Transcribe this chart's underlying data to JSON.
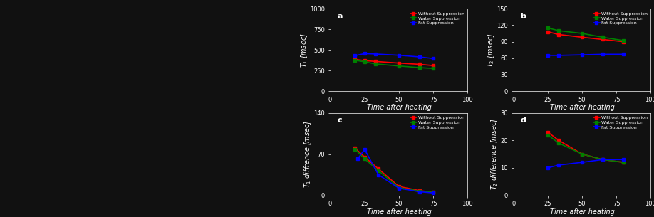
{
  "graph_a": {
    "label": "a",
    "ylabel": "$T_1$ [msec]",
    "xlabel": "Time after heating",
    "ylim": [
      0,
      1000
    ],
    "xlim": [
      0,
      100
    ],
    "yticks": [
      0,
      250,
      500,
      750,
      1000
    ],
    "xticks": [
      0,
      25,
      50,
      75,
      100
    ],
    "series": {
      "without": {
        "x": [
          18,
          25,
          33,
          50,
          65,
          75
        ],
        "y": [
          385,
          370,
          360,
          340,
          325,
          310
        ],
        "color": "red",
        "label": "Without Suppression"
      },
      "water": {
        "x": [
          18,
          25,
          33,
          50,
          65,
          75
        ],
        "y": [
          375,
          355,
          330,
          305,
          285,
          275
        ],
        "color": "green",
        "label": "Water Suppression"
      },
      "fat": {
        "x": [
          18,
          25,
          33,
          50,
          65,
          75
        ],
        "y": [
          430,
          455,
          450,
          435,
          415,
          395
        ],
        "color": "blue",
        "label": "Fat Suppression"
      }
    }
  },
  "graph_b": {
    "label": "b",
    "ylabel": "$T_2$ [msec]",
    "xlabel": "Time after heating",
    "ylim": [
      0,
      150
    ],
    "xlim": [
      0,
      100
    ],
    "yticks": [
      0,
      30,
      60,
      90,
      120,
      150
    ],
    "xticks": [
      0,
      25,
      50,
      75,
      100
    ],
    "series": {
      "without": {
        "x": [
          25,
          33,
          50,
          65,
          80
        ],
        "y": [
          108,
          103,
          98,
          94,
          90
        ],
        "color": "red",
        "label": "Without Suppression"
      },
      "water": {
        "x": [
          25,
          33,
          50,
          65,
          80
        ],
        "y": [
          115,
          110,
          105,
          98,
          92
        ],
        "color": "green",
        "label": "Water Suppression"
      },
      "fat": {
        "x": [
          25,
          33,
          50,
          65,
          80
        ],
        "y": [
          65,
          65,
          66,
          67,
          67
        ],
        "color": "blue",
        "label": "Fat Suppression"
      }
    }
  },
  "graph_c": {
    "label": "c",
    "ylabel": "$T_1$ diffrence [msec]",
    "xlabel": "Time after heating",
    "ylim": [
      0,
      140
    ],
    "xlim": [
      0,
      100
    ],
    "yticks": [
      0,
      70,
      140
    ],
    "xticks": [
      0,
      25,
      50,
      75,
      100
    ],
    "series": {
      "without": {
        "x": [
          18,
          25,
          35,
          50,
          65,
          75
        ],
        "y": [
          80,
          65,
          45,
          15,
          8,
          5
        ],
        "color": "red",
        "label": "Without Suppression"
      },
      "water": {
        "x": [
          18,
          25,
          35,
          50,
          65,
          75
        ],
        "y": [
          78,
          62,
          42,
          13,
          7,
          5
        ],
        "color": "green",
        "label": "Water Suppression"
      },
      "fat": {
        "x": [
          20,
          25,
          35,
          50,
          65,
          75
        ],
        "y": [
          62,
          78,
          35,
          12,
          6,
          4
        ],
        "color": "blue",
        "label": "Fat Suppression"
      }
    }
  },
  "graph_d": {
    "label": "d",
    "ylabel": "$T_2$ difference [msec]",
    "xlabel": "Time after heating",
    "ylim": [
      0,
      30
    ],
    "xlim": [
      0,
      100
    ],
    "yticks": [
      0,
      10,
      20,
      30
    ],
    "xticks": [
      0,
      25,
      50,
      75,
      100
    ],
    "series": {
      "without": {
        "x": [
          25,
          33,
          50,
          65,
          80
        ],
        "y": [
          23,
          20,
          15,
          13,
          12
        ],
        "color": "red",
        "label": "Without Suppression"
      },
      "water": {
        "x": [
          25,
          33,
          50,
          65,
          80
        ],
        "y": [
          22,
          19,
          15,
          13,
          12
        ],
        "color": "green",
        "label": "Water Suppression"
      },
      "fat": {
        "x": [
          25,
          33,
          50,
          65,
          80
        ],
        "y": [
          10,
          11,
          12,
          13,
          13
        ],
        "color": "blue",
        "label": "Fat Suppression"
      }
    }
  },
  "bg_color": "#111111",
  "plot_bg_color": "#111111",
  "text_color": "white",
  "tick_color": "white",
  "label_color": "white",
  "legend_fontsize": 4.5,
  "axis_label_fontsize": 7,
  "tick_fontsize": 6,
  "marker": "s",
  "markersize": 3,
  "linewidth": 1.2
}
